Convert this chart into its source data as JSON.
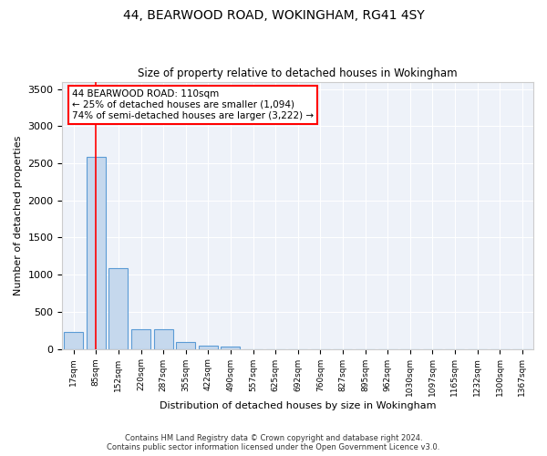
{
  "title": "44, BEARWOOD ROAD, WOKINGHAM, RG41 4SY",
  "subtitle": "Size of property relative to detached houses in Wokingham",
  "xlabel": "Distribution of detached houses by size in Wokingham",
  "ylabel": "Number of detached properties",
  "bar_color": "#c5d8ed",
  "bar_edge_color": "#5b9bd5",
  "background_color": "#eef2f9",
  "grid_color": "#ffffff",
  "categories": [
    "17sqm",
    "85sqm",
    "152sqm",
    "220sqm",
    "287sqm",
    "355sqm",
    "422sqm",
    "490sqm",
    "557sqm",
    "625sqm",
    "692sqm",
    "760sqm",
    "827sqm",
    "895sqm",
    "962sqm",
    "1030sqm",
    "1097sqm",
    "1165sqm",
    "1232sqm",
    "1300sqm",
    "1367sqm"
  ],
  "values": [
    230,
    2590,
    1090,
    270,
    270,
    95,
    50,
    35,
    0,
    0,
    0,
    0,
    0,
    0,
    0,
    0,
    0,
    0,
    0,
    0,
    0
  ],
  "ylim": [
    0,
    3600
  ],
  "yticks": [
    0,
    500,
    1000,
    1500,
    2000,
    2500,
    3000,
    3500
  ],
  "property_line_x": 1.0,
  "annotation_title": "44 BEARWOOD ROAD: 110sqm",
  "annotation_line1": "← 25% of detached houses are smaller (1,094)",
  "annotation_line2": "74% of semi-detached houses are larger (3,222) →",
  "footer_line1": "Contains HM Land Registry data © Crown copyright and database right 2024.",
  "footer_line2": "Contains public sector information licensed under the Open Government Licence v3.0."
}
